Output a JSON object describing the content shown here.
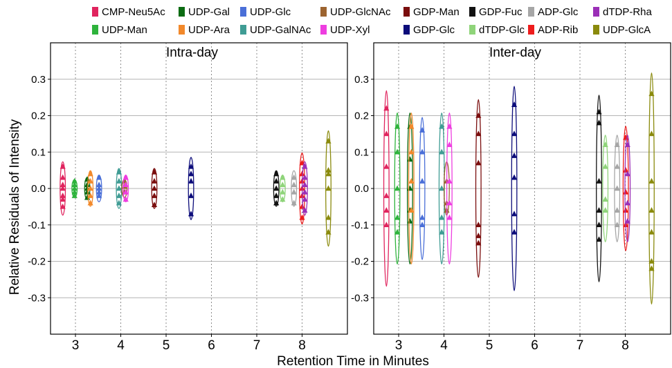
{
  "chart_data": {
    "type": "scatter",
    "xlabel": "Retention Time in Minutes",
    "ylabel": "Relative Residuals of Intensity",
    "grid": true,
    "legend_position": "top",
    "legend": [
      {
        "name": "CMP-Neu5Ac",
        "color": "#e0245e"
      },
      {
        "name": "UDP-Gal",
        "color": "#0b6b12"
      },
      {
        "name": "UDP-Glc",
        "color": "#4a6fd8"
      },
      {
        "name": "UDP-GlcNAc",
        "color": "#9c6430"
      },
      {
        "name": "GDP-Man",
        "color": "#7a0d0d"
      },
      {
        "name": "GDP-Fuc",
        "color": "#111111"
      },
      {
        "name": "ADP-Glc",
        "color": "#a6a6a6"
      },
      {
        "name": "dTDP-Rha",
        "color": "#9b2fb7"
      },
      {
        "name": "UDP-Man",
        "color": "#2eb33c"
      },
      {
        "name": "UDP-Ara",
        "color": "#f2892b"
      },
      {
        "name": "UDP-GalNAc",
        "color": "#3f9c94"
      },
      {
        "name": "UDP-Xyl",
        "color": "#ee3ee0"
      },
      {
        "name": "GDP-Glc",
        "color": "#0c0c7a"
      },
      {
        "name": "dTDP-Glc",
        "color": "#8fd47a"
      },
      {
        "name": "ADP-Rib",
        "color": "#ee1c1c"
      },
      {
        "name": "UDP-GlcA",
        "color": "#8a8a0c"
      }
    ],
    "panels": [
      {
        "title": "Intra-day",
        "xlim": [
          2.45,
          9.0
        ],
        "ylim": [
          -0.4,
          0.4
        ],
        "xticks": [
          3,
          4,
          5,
          6,
          7,
          8
        ],
        "yticks": [
          -0.3,
          -0.2,
          -0.1,
          0.0,
          0.1,
          0.2,
          0.3
        ],
        "series": [
          {
            "name": "CMP-Neu5Ac",
            "x": 2.72,
            "values": [
              0.06,
              0.03,
              0.01,
              0.0,
              -0.02,
              -0.03,
              -0.05
            ]
          },
          {
            "name": "UDP-Man",
            "x": 2.98,
            "values": [
              0.02,
              0.01,
              0.0,
              -0.01,
              -0.02
            ]
          },
          {
            "name": "UDP-Gal",
            "x": 3.26,
            "values": [
              0.025,
              0.01,
              0.0,
              -0.01,
              -0.025
            ]
          },
          {
            "name": "UDP-Ara",
            "x": 3.33,
            "values": [
              0.04,
              0.02,
              0.0,
              -0.02,
              -0.04
            ]
          },
          {
            "name": "UDP-Glc",
            "x": 3.52,
            "values": [
              0.03,
              0.01,
              0.0,
              -0.01,
              -0.02
            ]
          },
          {
            "name": "UDP-GalNAc",
            "x": 3.96,
            "values": [
              0.045,
              0.02,
              0.0,
              -0.02,
              -0.04
            ]
          },
          {
            "name": "UDP-GlcNAc",
            "x": 4.08,
            "values": [
              0.02,
              0.005,
              -0.01
            ]
          },
          {
            "name": "UDP-Xyl",
            "x": 4.11,
            "values": [
              0.03,
              0.01,
              -0.01,
              -0.03
            ]
          },
          {
            "name": "GDP-Man",
            "x": 4.74,
            "values": [
              0.045,
              0.02,
              0.0,
              -0.02,
              -0.045
            ]
          },
          {
            "name": "GDP-Glc",
            "x": 5.55,
            "values": [
              0.06,
              0.04,
              0.02,
              -0.02,
              -0.07
            ]
          },
          {
            "name": "GDP-Fuc",
            "x": 7.43,
            "values": [
              0.04,
              0.02,
              0.0,
              -0.02,
              -0.04
            ]
          },
          {
            "name": "dTDP-Glc",
            "x": 7.57,
            "values": [
              0.03,
              0.01,
              -0.01,
              -0.03
            ]
          },
          {
            "name": "ADP-Glc",
            "x": 7.82,
            "values": [
              0.03,
              0.01,
              -0.01,
              -0.04
            ]
          },
          {
            "name": "ADP-Rib",
            "x": 8.0,
            "values": [
              0.07,
              0.04,
              0.02,
              0.0,
              -0.02,
              -0.05,
              -0.08
            ]
          },
          {
            "name": "dTDP-Rha",
            "x": 8.06,
            "values": [
              0.06,
              0.03,
              0.01,
              -0.01,
              -0.03,
              -0.06
            ]
          },
          {
            "name": "UDP-GlcA",
            "x": 8.58,
            "values": [
              0.13,
              0.05,
              0.04,
              0.0,
              -0.08,
              -0.12
            ]
          }
        ]
      },
      {
        "title": "Inter-day",
        "xlim": [
          2.45,
          9.0
        ],
        "ylim": [
          -0.4,
          0.4
        ],
        "xticks": [
          3,
          4,
          5,
          6,
          7,
          8
        ],
        "yticks": [
          -0.3,
          -0.2,
          -0.1,
          0.0,
          0.1,
          0.2,
          0.3
        ],
        "series": [
          {
            "name": "CMP-Neu5Ac",
            "x": 2.73,
            "values": [
              0.22,
              0.15,
              0.06,
              -0.02,
              -0.06,
              -0.1
            ]
          },
          {
            "name": "UDP-Man",
            "x": 2.97,
            "values": [
              0.17,
              0.1,
              0.0,
              -0.08,
              -0.12
            ]
          },
          {
            "name": "UDP-Gal",
            "x": 3.25,
            "values": [
              0.17,
              0.08,
              0.0,
              -0.06,
              -0.09
            ]
          },
          {
            "name": "UDP-Ara",
            "x": 3.28,
            "values": [
              0.17,
              0.1,
              0.02,
              -0.06
            ]
          },
          {
            "name": "UDP-Glc",
            "x": 3.52,
            "values": [
              0.16,
              0.1,
              0.02,
              -0.08,
              -0.1
            ]
          },
          {
            "name": "UDP-GalNAc",
            "x": 3.95,
            "values": [
              0.17,
              0.1,
              0.0,
              -0.08,
              -0.12
            ]
          },
          {
            "name": "UDP-GlcNAc",
            "x": 4.06,
            "values": [
              0.02,
              -0.04,
              -0.06
            ]
          },
          {
            "name": "UDP-Xyl",
            "x": 4.12,
            "values": [
              0.17,
              0.12,
              0.02,
              -0.04,
              -0.08
            ]
          },
          {
            "name": "GDP-Man",
            "x": 4.76,
            "values": [
              0.2,
              0.15,
              0.07,
              -0.1,
              -0.13,
              -0.15
            ]
          },
          {
            "name": "GDP-Glc",
            "x": 5.55,
            "values": [
              0.23,
              0.15,
              0.09,
              0.03,
              -0.07,
              -0.12
            ]
          },
          {
            "name": "GDP-Fuc",
            "x": 7.42,
            "values": [
              0.21,
              0.18,
              0.02,
              -0.06,
              -0.1,
              -0.14
            ]
          },
          {
            "name": "dTDP-Glc",
            "x": 7.56,
            "values": [
              0.12,
              0.06,
              -0.03,
              -0.06
            ]
          },
          {
            "name": "ADP-Glc",
            "x": 7.82,
            "values": [
              0.12,
              0.06,
              0.0,
              -0.06,
              -0.1
            ]
          },
          {
            "name": "ADP-Rib",
            "x": 8.01,
            "values": [
              0.14,
              0.05,
              -0.01,
              -0.06,
              -0.1
            ]
          },
          {
            "name": "dTDP-Rha",
            "x": 8.05,
            "values": [
              0.12,
              0.04,
              -0.04,
              -0.09
            ]
          },
          {
            "name": "UDP-GlcA",
            "x": 8.58,
            "values": [
              0.26,
              0.15,
              0.02,
              -0.06,
              -0.12,
              -0.2,
              -0.22
            ]
          }
        ]
      }
    ]
  }
}
